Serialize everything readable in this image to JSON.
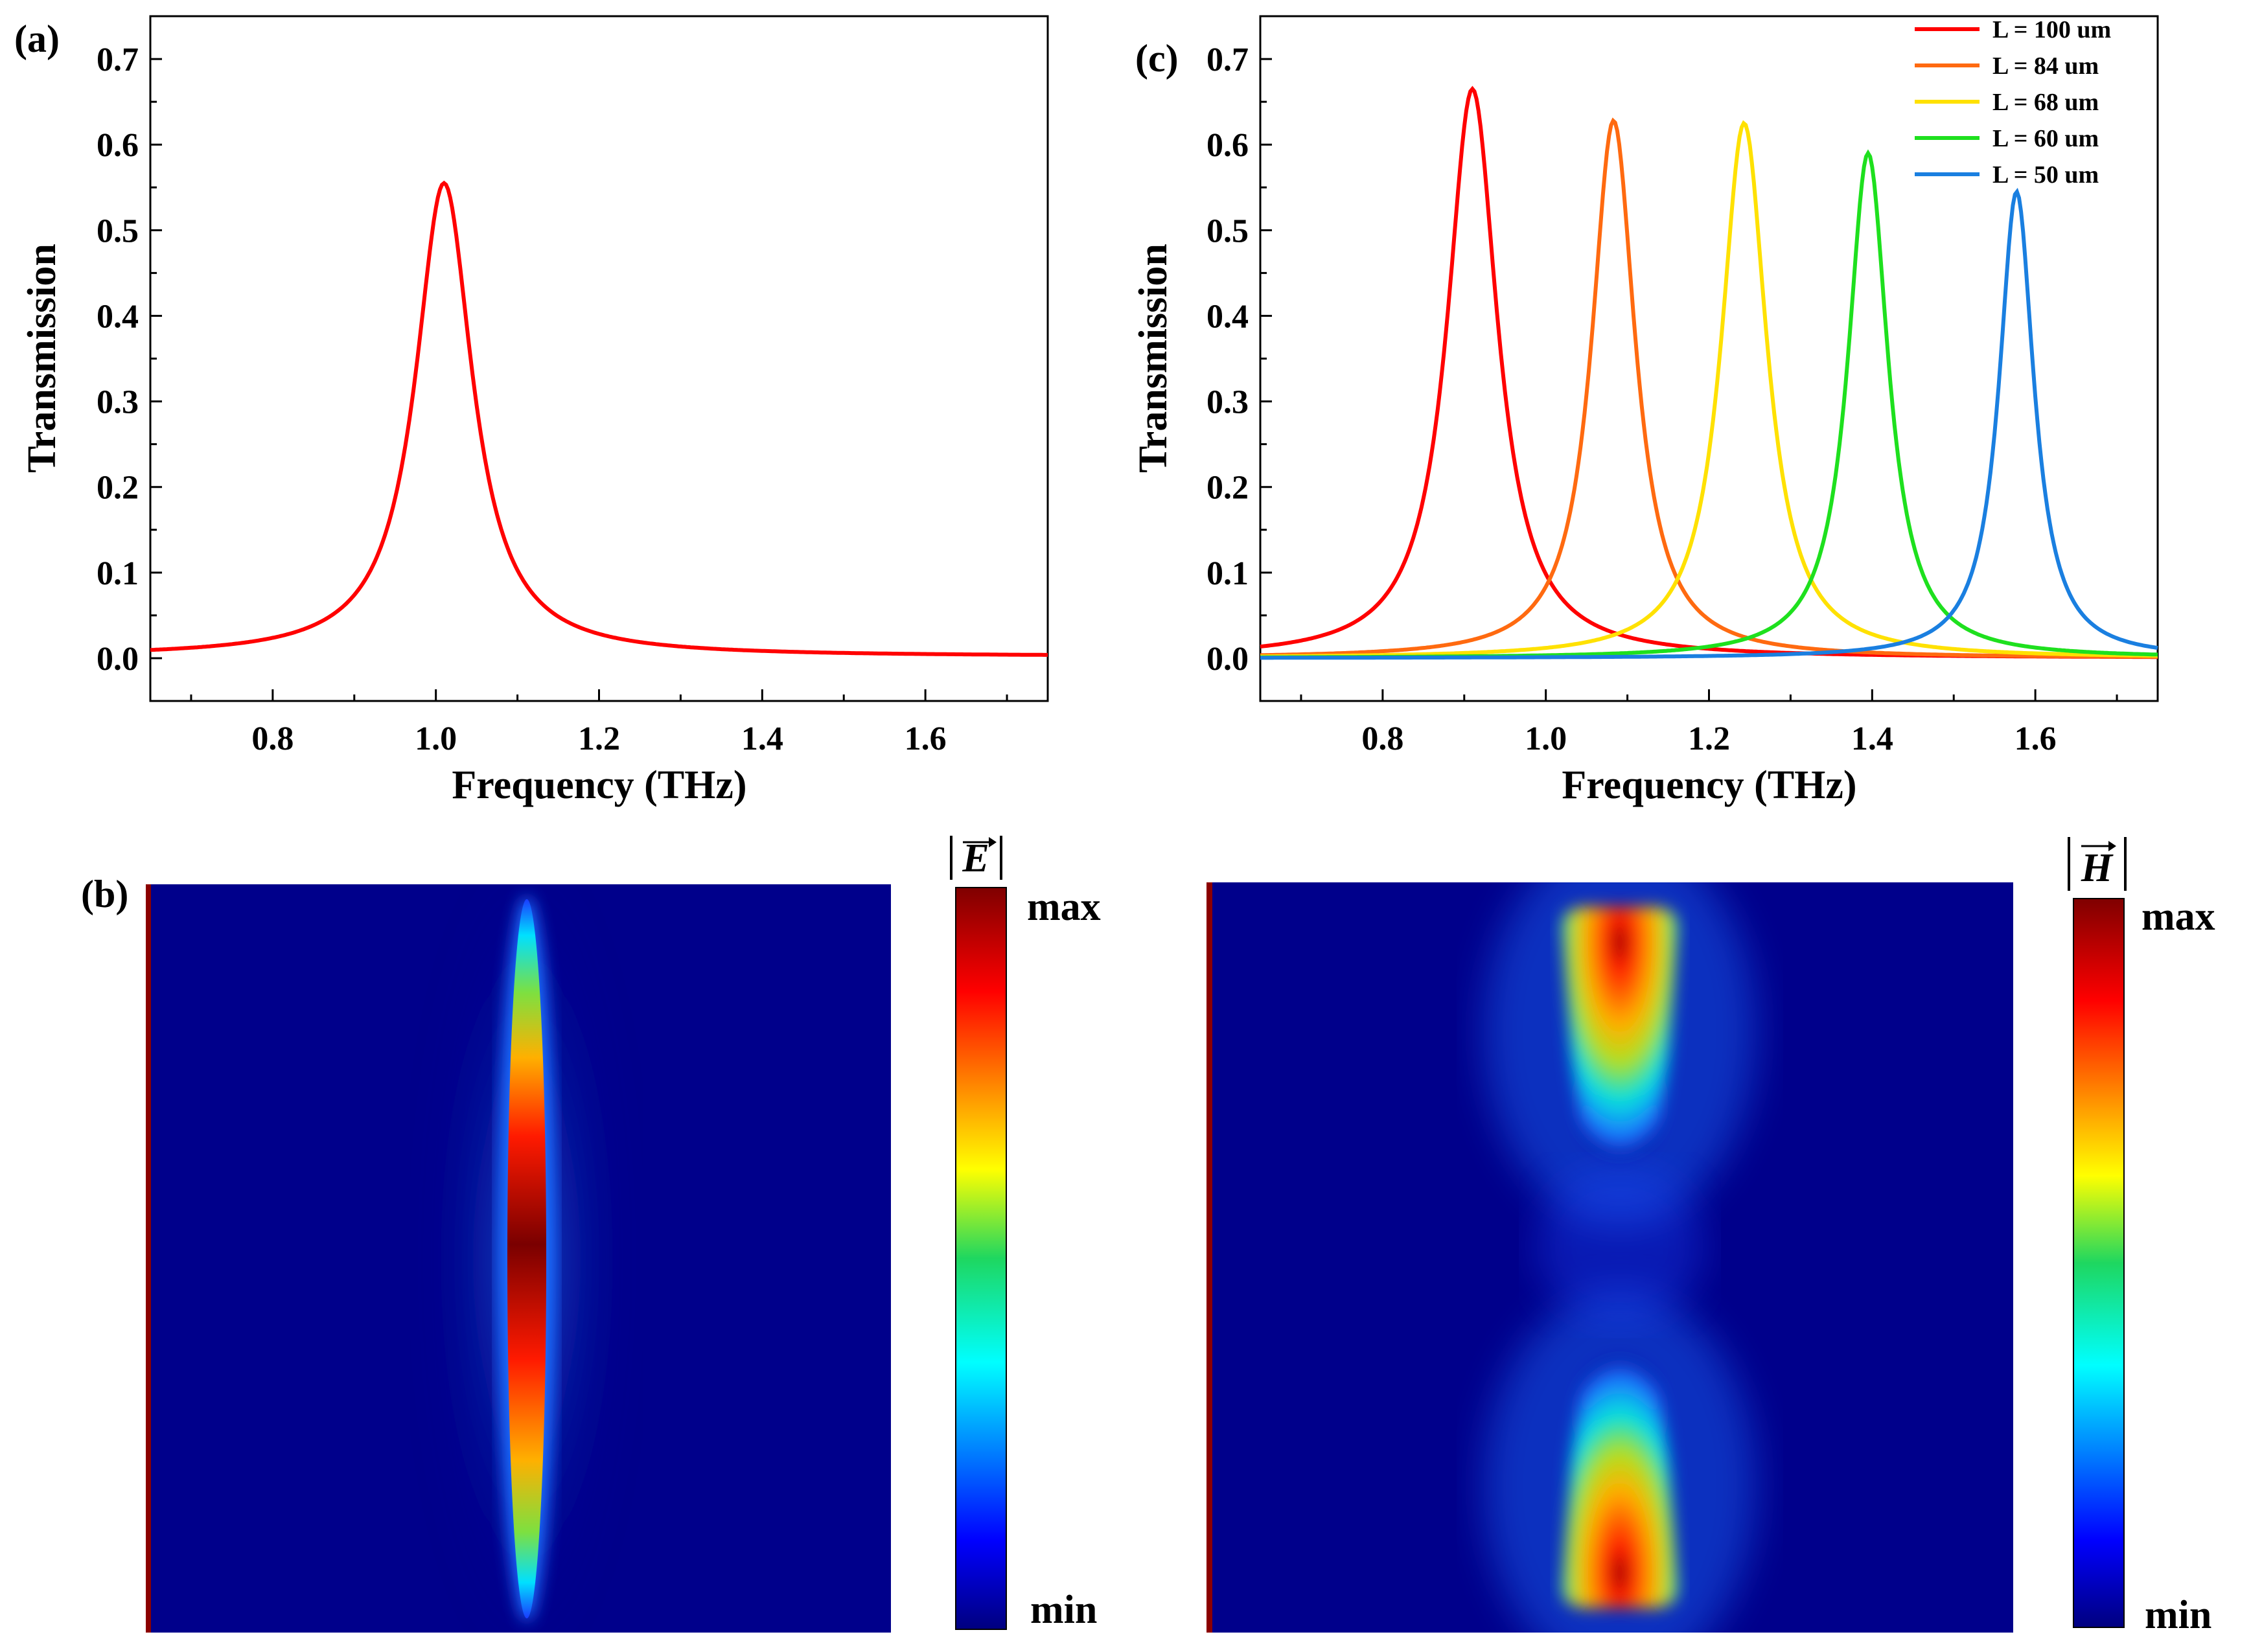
{
  "chart_data": [
    {
      "panel": "(a)",
      "type": "line",
      "xlabel": "Frequency (THz)",
      "ylabel": "Transmission",
      "xlim": [
        0.65,
        1.75
      ],
      "ylim": [
        -0.05,
        0.75
      ],
      "xticks": [
        "0.8",
        "1.0",
        "1.2",
        "1.4",
        "1.6"
      ],
      "yticks": [
        "0.0",
        "0.1",
        "0.2",
        "0.3",
        "0.4",
        "0.5",
        "0.6",
        "0.7"
      ],
      "series": [
        {
          "name": "",
          "color": "#ff0000",
          "peak_x": 1.01,
          "peak_y": 0.555,
          "width": 0.085,
          "baseline": 0.002
        }
      ]
    },
    {
      "panel": "(c)",
      "type": "line",
      "xlabel": "Frequency (THz)",
      "ylabel": "Transmission",
      "xlim": [
        0.65,
        1.75
      ],
      "ylim": [
        -0.05,
        0.75
      ],
      "xticks": [
        "0.8",
        "1.0",
        "1.2",
        "1.4",
        "1.6"
      ],
      "yticks": [
        "0.0",
        "0.1",
        "0.2",
        "0.3",
        "0.4",
        "0.5",
        "0.6",
        "0.7"
      ],
      "legend_position": "top-right",
      "series": [
        {
          "name": "L = 100 um",
          "color": "#ff0000",
          "peak_x": 0.91,
          "peak_y": 0.665,
          "width": 0.075
        },
        {
          "name": "L = 84 um",
          "color": "#ff6a10",
          "peak_x": 1.083,
          "peak_y": 0.628,
          "width": 0.065
        },
        {
          "name": "L = 68 um",
          "color": "#ffe100",
          "peak_x": 1.243,
          "peak_y": 0.625,
          "width": 0.068
        },
        {
          "name": "L = 60 um",
          "color": "#1ee01e",
          "peak_x": 1.395,
          "peak_y": 0.59,
          "width": 0.06
        },
        {
          "name": "L = 50 um",
          "color": "#1a7fe0",
          "peak_x": 1.577,
          "peak_y": 0.545,
          "width": 0.052
        }
      ]
    }
  ],
  "field_maps": {
    "panel": "(b)",
    "e_field": {
      "colorbar_title": "E",
      "max_label": "max",
      "min_label": "min"
    },
    "h_field": {
      "colorbar_title": "H",
      "max_label": "max",
      "min_label": "min"
    }
  }
}
